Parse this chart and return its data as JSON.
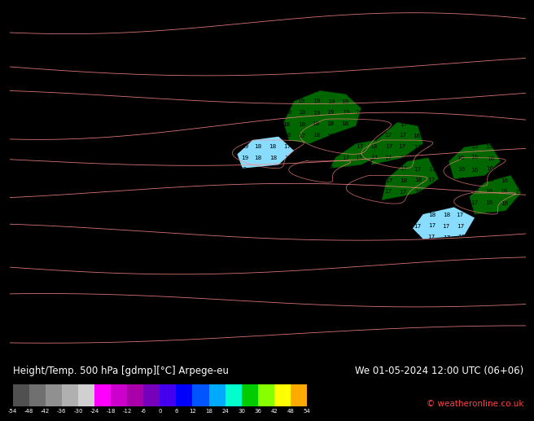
{
  "title_left": "Height/Temp. 500 hPa [gdmp][°C] Arpege-eu",
  "title_right": "We 01-05-2024 12:00 UTC (06+06)",
  "copyright": "© weatheronline.co.uk",
  "bg_color": "#00ccff",
  "land_color": "#006600",
  "contour_color": "#ff8888",
  "number_color": "#000000",
  "fig_width": 6.34,
  "fig_height": 4.9,
  "colorbar_values": [
    -54,
    -48,
    -42,
    -36,
    -30,
    -24,
    -18,
    -12,
    -6,
    0,
    6,
    12,
    18,
    24,
    30,
    36,
    42,
    48,
    54
  ],
  "bar_colors": [
    "#505050",
    "#707070",
    "#909090",
    "#b0b0b0",
    "#d0d0d0",
    "#ff00ff",
    "#cc00cc",
    "#aa00aa",
    "#7700bb",
    "#4400ee",
    "#0000ff",
    "#0055ff",
    "#00aaff",
    "#00ffcc",
    "#00cc00",
    "#88ff00",
    "#ffff00",
    "#ffaa00",
    "#ff5500",
    "#cc0000"
  ],
  "land_patches": [
    [
      [
        58,
        62
      ],
      [
        63,
        65
      ],
      [
        67,
        67
      ],
      [
        68,
        72
      ],
      [
        65,
        76
      ],
      [
        60,
        77
      ],
      [
        55,
        74
      ],
      [
        53,
        68
      ],
      [
        54,
        63
      ],
      [
        58,
        62
      ]
    ],
    [
      [
        62,
        55
      ],
      [
        68,
        56
      ],
      [
        72,
        59
      ],
      [
        71,
        63
      ],
      [
        67,
        62
      ],
      [
        63,
        58
      ],
      [
        62,
        55
      ]
    ],
    [
      [
        70,
        56
      ],
      [
        76,
        58
      ],
      [
        80,
        62
      ],
      [
        79,
        67
      ],
      [
        75,
        68
      ],
      [
        71,
        63
      ],
      [
        70,
        56
      ]
    ],
    [
      [
        72,
        46
      ],
      [
        79,
        48
      ],
      [
        83,
        52
      ],
      [
        81,
        58
      ],
      [
        77,
        57
      ],
      [
        73,
        52
      ],
      [
        72,
        46
      ]
    ],
    [
      [
        86,
        52
      ],
      [
        92,
        53
      ],
      [
        95,
        57
      ],
      [
        93,
        62
      ],
      [
        88,
        61
      ],
      [
        85,
        57
      ],
      [
        86,
        52
      ]
    ],
    [
      [
        90,
        42
      ],
      [
        96,
        43
      ],
      [
        99,
        48
      ],
      [
        97,
        53
      ],
      [
        92,
        51
      ],
      [
        89,
        47
      ],
      [
        90,
        42
      ]
    ]
  ]
}
